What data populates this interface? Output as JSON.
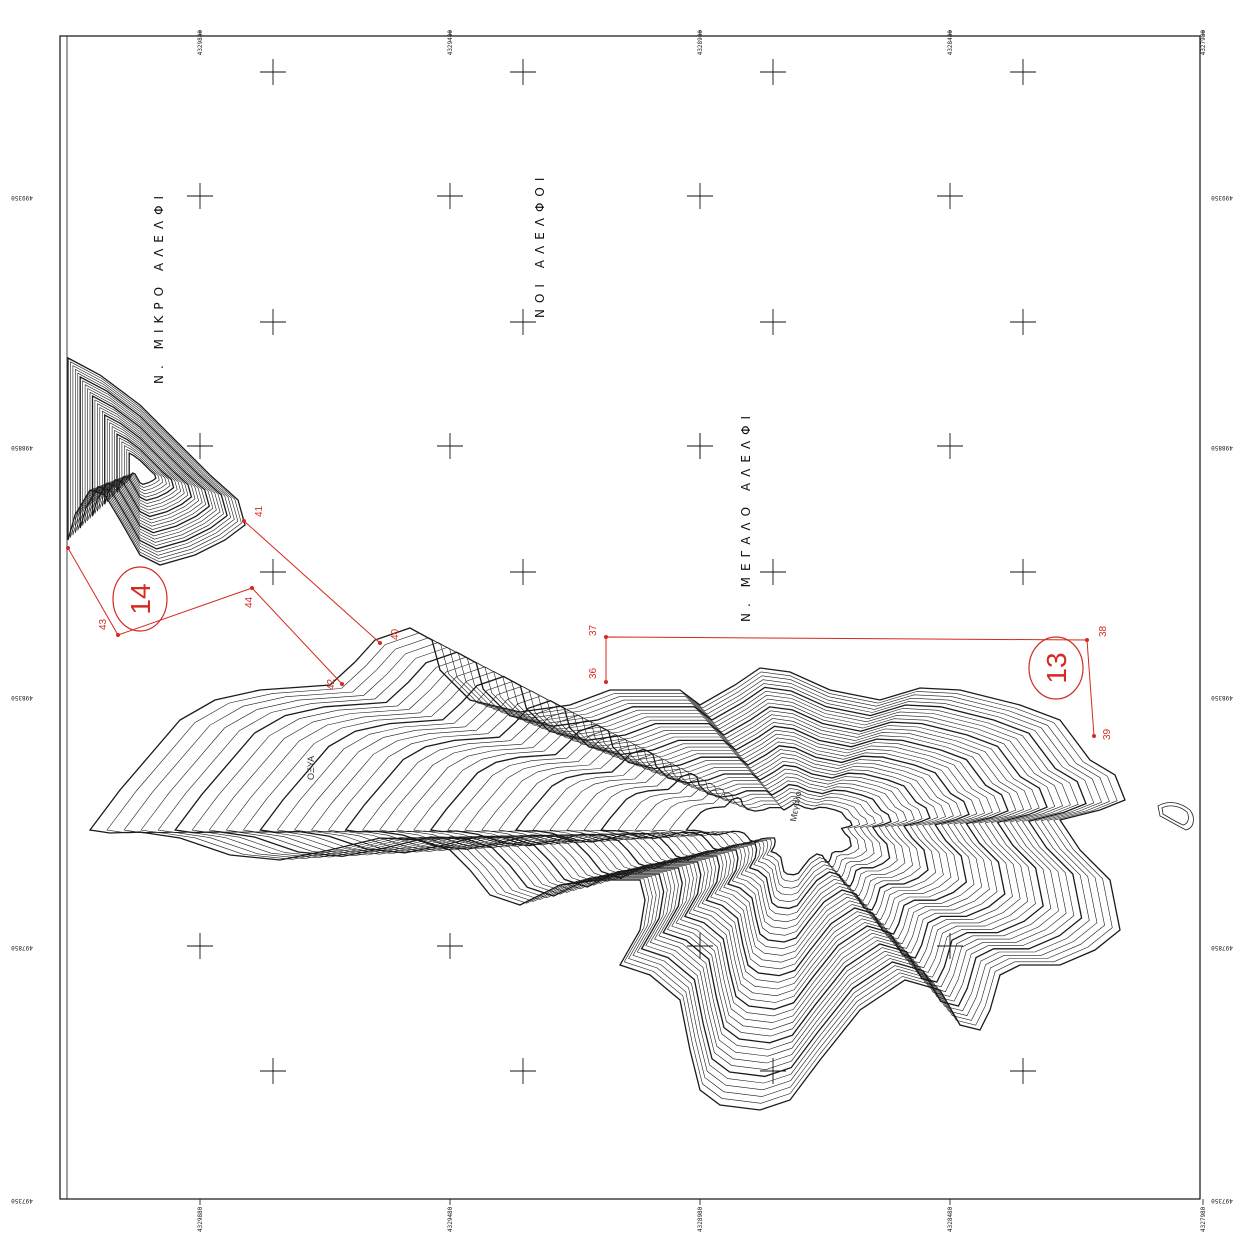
{
  "map": {
    "colors": {
      "line": "#111111",
      "contour": "#1a1a1a",
      "boundary": "#d42a1f",
      "paper": "#ffffff"
    },
    "top_ticks": [
      "4329880",
      "4329480",
      "4328980",
      "4328480",
      "4327980"
    ],
    "bottom_ticks": [
      "4329880",
      "4329480",
      "4328980",
      "4328480",
      "4327980"
    ],
    "left_ticks": [
      "499350",
      "498850",
      "498350",
      "497850",
      "497350"
    ],
    "right_ticks": [
      "499350",
      "498850",
      "498350",
      "497850",
      "497350"
    ],
    "place_names": {
      "group": "ΝΟΙ ΑΛΕΛΦΟΙ",
      "small_island": "Ν. ΜΙΚΡΟ ΑΛΕΛΦΙ",
      "large_island": "Ν. ΜΕΓΑΛΟ ΑΛΕΛΦΙ"
    },
    "boundary_points": [
      "36",
      "37",
      "38",
      "39",
      "40",
      "41",
      "42",
      "43",
      "44"
    ],
    "zone_labels": [
      "13",
      "14"
    ],
    "peak_labels": [
      "ΟΞΥΑ",
      "Μεγάλο"
    ]
  }
}
